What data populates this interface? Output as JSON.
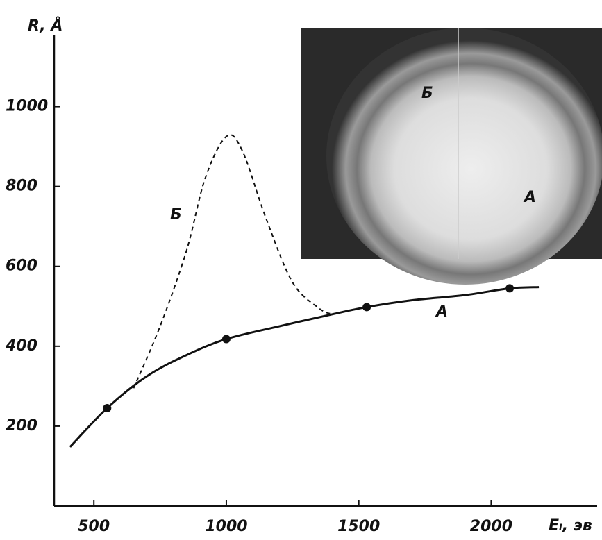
{
  "chart_data": {
    "type": "line",
    "ylabel": "R, Å",
    "xlabel": "Eᵢ, эв",
    "xlim": [
      350,
      2400
    ],
    "ylim": [
      0,
      1180
    ],
    "xticks": [
      500,
      1000,
      1500,
      2000
    ],
    "yticks": [
      200,
      400,
      600,
      800,
      1000
    ],
    "series": [
      {
        "name": "A",
        "color": "#111111",
        "style": "solid",
        "x": [
          410,
          550,
          700,
          850,
          1000,
          1200,
          1400,
          1530,
          1700,
          1900,
          2070,
          2180
        ],
        "values": [
          148,
          245,
          325,
          378,
          418,
          450,
          480,
          498,
          515,
          528,
          545,
          548
        ]
      },
      {
        "name": "Б",
        "color": "#111111",
        "style": "dashed",
        "x": [
          650,
          750,
          850,
          920,
          1000,
          1060,
          1150,
          1250,
          1350,
          1400
        ],
        "values": [
          295,
          450,
          640,
          820,
          925,
          890,
          720,
          560,
          495,
          480
        ]
      }
    ],
    "points": {
      "x": [
        550,
        1000,
        1530,
        2070
      ],
      "y": [
        245,
        418,
        498,
        545
      ]
    }
  },
  "inset": {
    "labels": [
      "Б",
      "A"
    ]
  }
}
